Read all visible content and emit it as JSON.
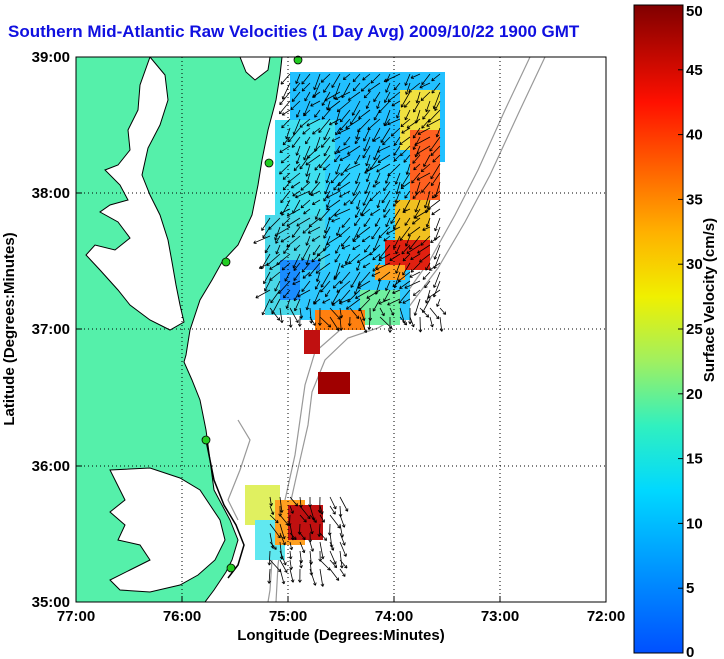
{
  "title": "Southern Mid-Atlantic Raw Velocities (1 Day Avg) 2009/10/22 1900 GMT",
  "axes": {
    "xlabel": "Longitude (Degrees:Minutes)",
    "ylabel": "Latitude (Degrees:Minutes)",
    "xticks": [
      "77:00",
      "76:00",
      "75:00",
      "74:00",
      "73:00",
      "72:00"
    ],
    "yticks": [
      "39:00",
      "38:00",
      "37:00",
      "36:00",
      "35:00"
    ],
    "xlim": [
      -77,
      -72
    ],
    "ylim": [
      35,
      39
    ],
    "grid": true
  },
  "colorbar": {
    "label": "Surface Velocity (cm/s)",
    "ticks": [
      "0",
      "5",
      "10",
      "15",
      "20",
      "25",
      "30",
      "35",
      "40",
      "45",
      "50"
    ],
    "range": [
      0,
      50
    ]
  },
  "colors": {
    "land": "#55f0aa",
    "coast": "#000000",
    "bathymetry": "#999999",
    "title": "#1010e0",
    "site_marker": "#22cc22"
  }
}
